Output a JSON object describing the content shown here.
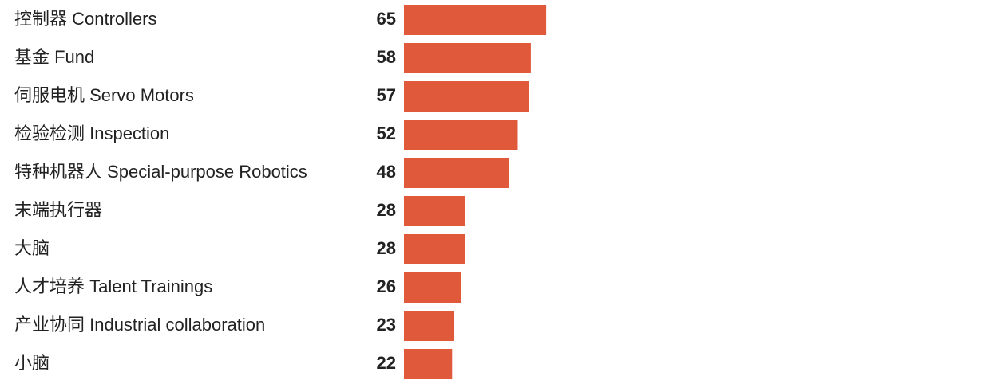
{
  "chart_data": {
    "type": "bar",
    "orientation": "horizontal",
    "categories": [
      "控制器 Controllers",
      "基金 Fund",
      "伺服电机 Servo Motors",
      "检验检测 Inspection",
      "特种机器人 Special-purpose Robotics",
      "末端执行器",
      "大脑",
      "人才培养 Talent Trainings",
      "产业协同 Industrial collaboration",
      "小脑"
    ],
    "values": [
      65,
      58,
      57,
      52,
      48,
      28,
      28,
      26,
      23,
      22
    ],
    "color": "#e0593b"
  }
}
